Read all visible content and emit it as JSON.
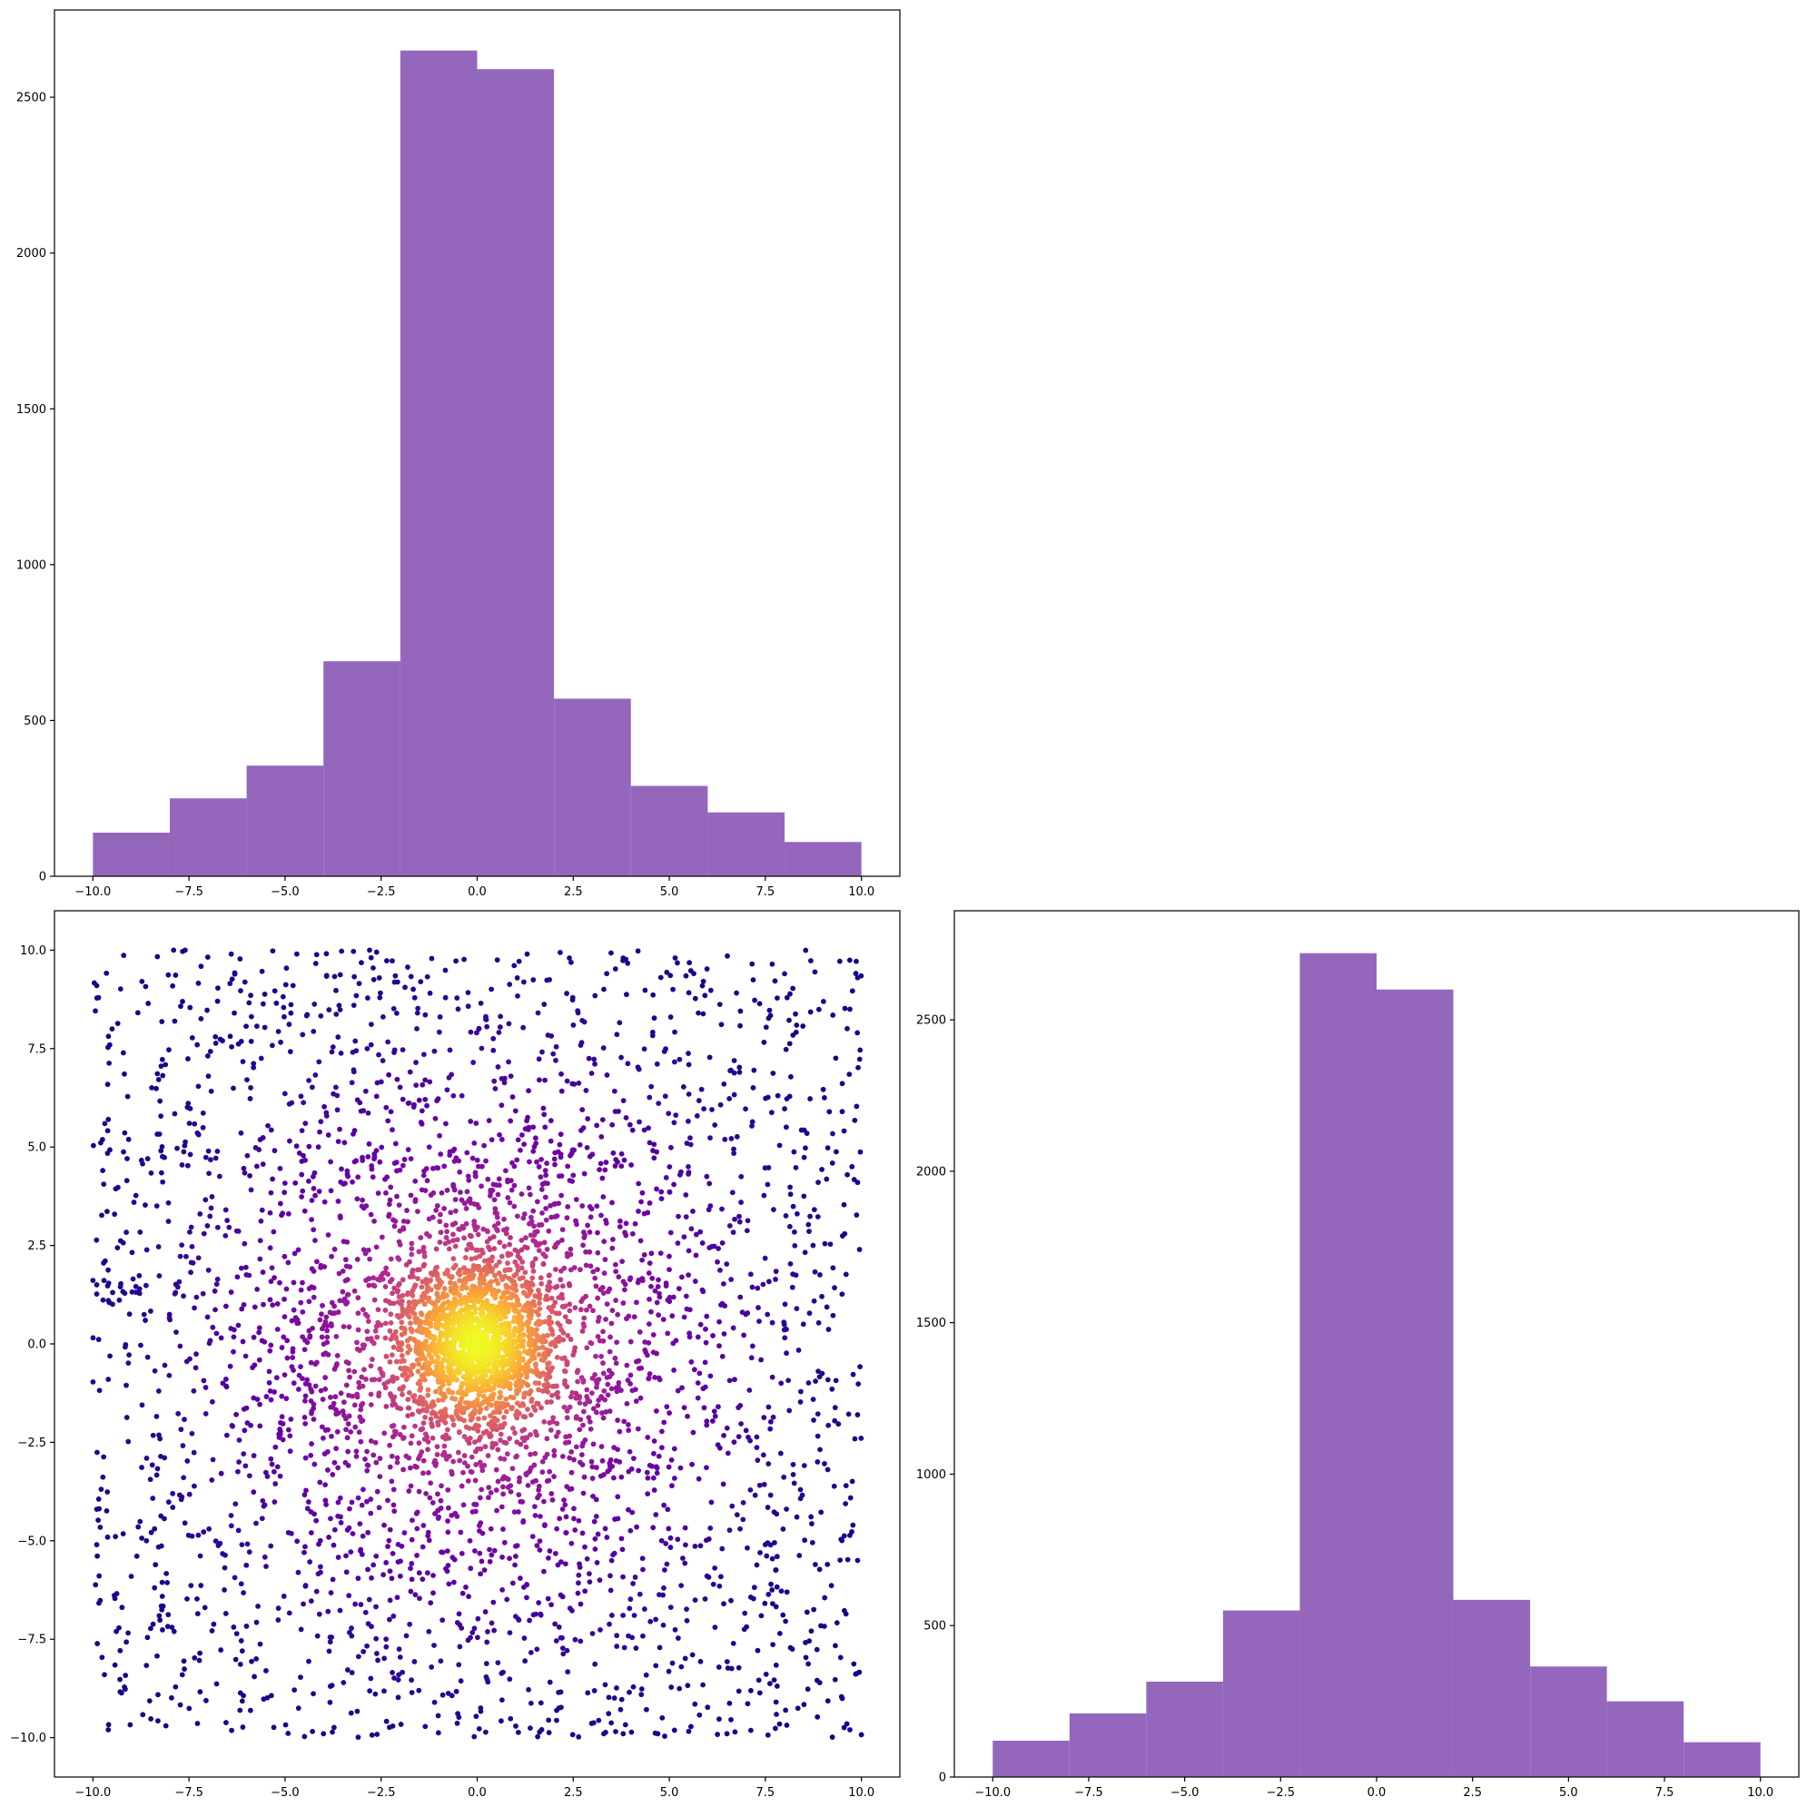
{
  "chart_data": [
    {
      "id": "hist_x",
      "type": "bar",
      "kind": "histogram",
      "bin_edges": [
        -10,
        -8,
        -6,
        -4,
        -2,
        0,
        2,
        4,
        6,
        8,
        10
      ],
      "values": [
        140,
        250,
        355,
        690,
        2650,
        2590,
        570,
        290,
        205,
        110
      ],
      "xlim": [
        -11,
        11
      ],
      "ylim": [
        0,
        2780
      ],
      "x_ticks": [
        -10,
        -7.5,
        -5,
        -2.5,
        0,
        2.5,
        5,
        7.5,
        10
      ],
      "x_tick_labels": [
        "−10.0",
        "−7.5",
        "−5.0",
        "−2.5",
        "0.0",
        "2.5",
        "5.0",
        "7.5",
        "10.0"
      ],
      "y_ticks": [
        0,
        500,
        1000,
        1500,
        2000,
        2500
      ],
      "y_tick_labels": [
        "0",
        "500",
        "1000",
        "1500",
        "2000",
        "2500"
      ],
      "color": "#9467bd",
      "grid": false
    },
    {
      "id": "scatter_xy",
      "type": "scatter",
      "description_of_distribution": "uniform background over [-10,10]^2 plus concentrated central cluster near (0,0); color encodes point density (plasma colormap)",
      "xlim": [
        -11,
        11
      ],
      "ylim": [
        -11,
        11
      ],
      "x_ticks": [
        -10,
        -7.5,
        -5,
        -2.5,
        0,
        2.5,
        5,
        7.5,
        10
      ],
      "x_tick_labels": [
        "−10.0",
        "−7.5",
        "−5.0",
        "−2.5",
        "0.0",
        "2.5",
        "5.0",
        "7.5",
        "10.0"
      ],
      "y_ticks": [
        -10,
        -7.5,
        -5,
        -2.5,
        0,
        2.5,
        5,
        7.5,
        10
      ],
      "y_tick_labels": [
        "−10.0",
        "−7.5",
        "−5.0",
        "−2.5",
        "0.0",
        "2.5",
        "5.0",
        "7.5",
        "10.0"
      ],
      "colormap": [
        "#0d0887",
        "#6a00a8",
        "#b12a90",
        "#e16462",
        "#fca636",
        "#f0f921"
      ],
      "sample_points": [
        [
          -9.9,
          9.1
        ],
        [
          -9.5,
          8.0
        ],
        [
          -7.6,
          10.0
        ],
        [
          -7.9,
          10.0
        ],
        [
          -6.4,
          9.9
        ],
        [
          -2.8,
          10.0
        ],
        [
          1.3,
          9.9
        ],
        [
          2.4,
          9.8
        ],
        [
          3.8,
          9.8
        ],
        [
          8.0,
          9.4
        ],
        [
          9.9,
          9.3
        ],
        [
          9.7,
          8.5
        ],
        [
          9.5,
          5.9
        ],
        [
          9.9,
          4.1
        ],
        [
          -9.6,
          5.7
        ],
        [
          -9.9,
          1.5
        ],
        [
          -9.6,
          -0.9
        ],
        [
          -9.9,
          -4.2
        ],
        [
          -9.9,
          -5.1
        ],
        [
          -9.7,
          -8.4
        ],
        [
          -9.6,
          -9.8
        ],
        [
          -8.1,
          -9.7
        ],
        [
          -4.0,
          -9.9
        ],
        [
          3.8,
          -9.9
        ],
        [
          4.7,
          -9.9
        ],
        [
          6.5,
          -9.9
        ],
        [
          9.7,
          -9.8
        ],
        [
          9.6,
          -3.6
        ],
        [
          9.9,
          -5.5
        ],
        [
          9.9,
          -1.8
        ],
        [
          0.0,
          0.0
        ],
        [
          0.3,
          -0.2
        ],
        [
          -0.4,
          0.3
        ]
      ],
      "grid": false
    },
    {
      "id": "hist_y",
      "type": "bar",
      "kind": "histogram",
      "bin_edges": [
        -10,
        -8,
        -6,
        -4,
        -2,
        0,
        2,
        4,
        6,
        8,
        10
      ],
      "values": [
        120,
        210,
        315,
        550,
        2720,
        2600,
        585,
        365,
        250,
        115
      ],
      "xlim": [
        -11,
        11
      ],
      "ylim": [
        0,
        2860
      ],
      "x_ticks": [
        -10,
        -7.5,
        -5,
        -2.5,
        0,
        2.5,
        5,
        7.5,
        10
      ],
      "x_tick_labels": [
        "−10.0",
        "−7.5",
        "−5.0",
        "−2.5",
        "0.0",
        "2.5",
        "5.0",
        "7.5",
        "10.0"
      ],
      "y_ticks": [
        0,
        500,
        1000,
        1500,
        2000,
        2500
      ],
      "y_tick_labels": [
        "0",
        "500",
        "1000",
        "1500",
        "2000",
        "2500"
      ],
      "color": "#9467bd",
      "grid": false
    }
  ]
}
